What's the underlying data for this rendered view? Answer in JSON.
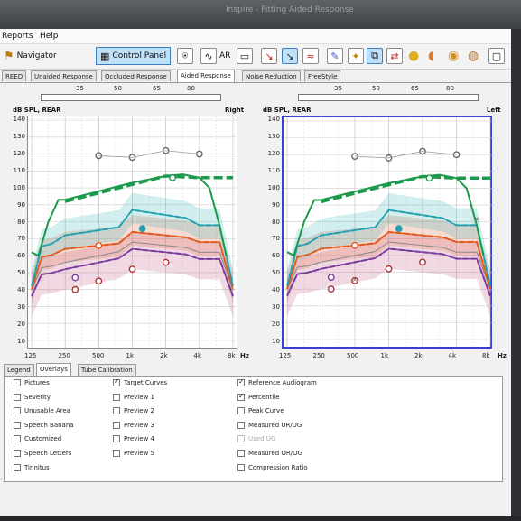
{
  "titlebar": {
    "title": "Inspire - Fitting Aided Response"
  },
  "menu": {
    "reports": "Reports",
    "help": "Help"
  },
  "toolbar": {
    "navigator": "Navigator",
    "control_panel": "Control Panel",
    "ar": "AR"
  },
  "tabs": [
    {
      "label": "REED"
    },
    {
      "label": "Unaided Response"
    },
    {
      "label": "Occluded Response"
    },
    {
      "label": "Aided Response"
    },
    {
      "label": "Noise Reduction"
    },
    {
      "label": "FreeStyle"
    }
  ],
  "input_levels": [
    "35",
    "50",
    "65",
    "80"
  ],
  "panels": {
    "right": {
      "axis_label": "dB SPL, REAR",
      "side": "Right"
    },
    "left": {
      "axis_label": "dB SPL, REAR",
      "side": "Left"
    }
  },
  "y_ticks": [
    "140",
    "130",
    "120",
    "110",
    "100",
    "90",
    "80",
    "70",
    "60",
    "50",
    "40",
    "30",
    "20",
    "10"
  ],
  "x_ticks": [
    "125",
    "250",
    "500",
    "1k",
    "2k",
    "4k",
    "8k"
  ],
  "x_unit": "Hz",
  "bottom_tabs": [
    {
      "label": "Legend"
    },
    {
      "label": "Overlays"
    },
    {
      "label": "Tube Calibration"
    }
  ],
  "overlays": {
    "col1": [
      {
        "label": "Pictures",
        "checked": false
      },
      {
        "label": "Severity",
        "checked": false
      },
      {
        "label": "Unusable Area",
        "checked": false
      },
      {
        "label": "Speech Banana",
        "checked": false
      },
      {
        "label": "Customized",
        "checked": false
      },
      {
        "label": "Speech Letters",
        "checked": false
      },
      {
        "label": "Tinnitus",
        "checked": false
      }
    ],
    "col2": [
      {
        "label": "Target Curves",
        "checked": true
      },
      {
        "label": "Preview 1",
        "checked": false
      },
      {
        "label": "Preview 2",
        "checked": false
      },
      {
        "label": "Preview 3",
        "checked": false
      },
      {
        "label": "Preview 4",
        "checked": false
      },
      {
        "label": "Preview 5",
        "checked": false
      }
    ],
    "col3": [
      {
        "label": "Reference Audiogram",
        "checked": true
      },
      {
        "label": "Percentile",
        "checked": true
      },
      {
        "label": "Peak Curve",
        "checked": false
      },
      {
        "label": "Measured UR/UG",
        "checked": false
      },
      {
        "label": "Used UG",
        "checked": false,
        "disabled": true
      },
      {
        "label": "Measured OR/OG",
        "checked": false
      },
      {
        "label": "Compression Ratio",
        "checked": false
      }
    ]
  },
  "colors": {
    "green": "#1a9a4a",
    "cyan": "#22a0b0",
    "orange": "#e05a20",
    "purple": "#7a3aa0",
    "grey": "#888888",
    "select": "#3a3fd0"
  }
}
